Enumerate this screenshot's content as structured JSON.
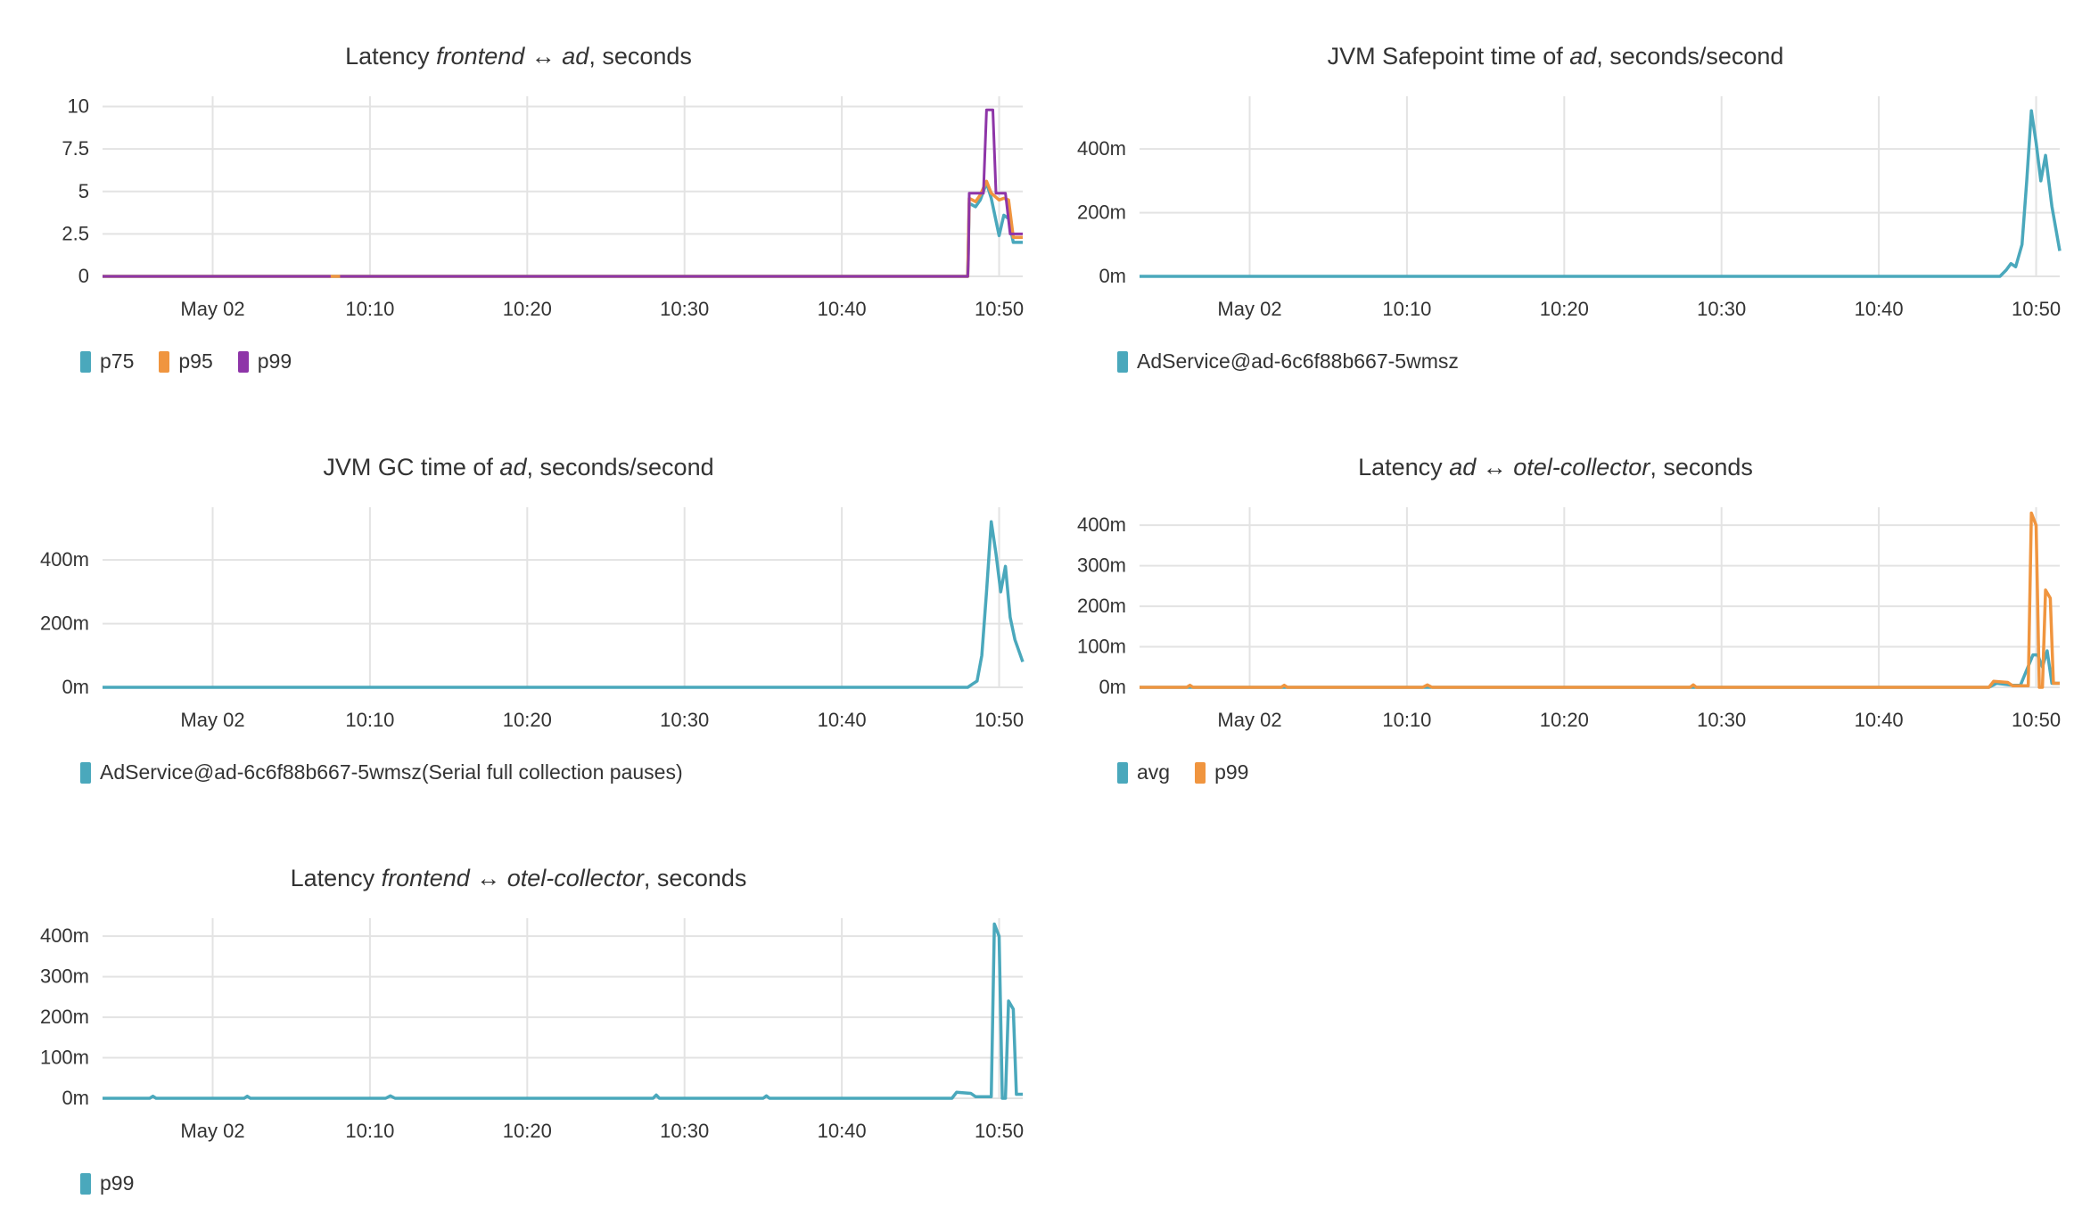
{
  "chart_data": [
    {
      "type": "line",
      "title_parts": [
        "Latency ",
        "frontend",
        " ↔ ",
        "ad",
        ", seconds"
      ],
      "title": "Latency frontend ↔ ad, seconds",
      "x_ticks": [
        "May 02",
        "10:10",
        "10:20",
        "10:30",
        "10:40",
        "10:50"
      ],
      "y_ticks": [
        "0",
        "2.5",
        "5",
        "7.5",
        "10"
      ],
      "ylim": [
        0,
        10.5
      ],
      "series": [
        {
          "name": "p75",
          "color": "#4aa8bc",
          "x": [
            "09:53",
            "10:48",
            "10:48.1",
            "10:48.5",
            "10:48.8",
            "10:49.2",
            "10:49.5",
            "10:50",
            "10:50.3",
            "10:50.6",
            "10:50.9",
            "10:51.2",
            "10:51.5"
          ],
          "y": [
            0,
            0,
            4.3,
            4.1,
            4.5,
            5.5,
            4.6,
            2.4,
            3.6,
            3.4,
            2.0,
            2.0,
            2.0
          ]
        },
        {
          "name": "p95",
          "color": "#f0953f",
          "x": [
            "09:53",
            "10:48",
            "10:48.1",
            "10:48.5",
            "10:48.8",
            "10:49.2",
            "10:49.5",
            "10:50",
            "10:50.3",
            "10:50.6",
            "10:50.9",
            "10:51.2",
            "10:51.5"
          ],
          "y": [
            0,
            0,
            4.6,
            4.4,
            4.8,
            5.6,
            4.9,
            4.5,
            4.6,
            4.5,
            2.3,
            2.3,
            2.3
          ]
        },
        {
          "name": "p99",
          "color": "#8e35a8",
          "x": [
            "09:53",
            "10:07.5",
            "10:07.6",
            "10:08",
            "10:08.1",
            "10:48",
            "10:48.05",
            "10:48.1",
            "10:49",
            "10:49.2",
            "10:49.6",
            "10:49.8",
            "10:50.4",
            "10:50.7",
            "10:51.5"
          ],
          "y": [
            0,
            0,
            null,
            null,
            0,
            0,
            1,
            4.9,
            4.9,
            9.8,
            9.8,
            4.9,
            4.9,
            2.5,
            2.5
          ]
        }
      ]
    },
    {
      "type": "line",
      "title_parts": [
        "JVM Safepoint time of ",
        "ad",
        ", seconds/second"
      ],
      "title": "JVM Safepoint time of ad, seconds/second",
      "x_ticks": [
        "May 02",
        "10:10",
        "10:20",
        "10:30",
        "10:40",
        "10:50"
      ],
      "y_ticks": [
        "0m",
        "200m",
        "400m"
      ],
      "ylim": [
        0,
        0.56
      ],
      "series": [
        {
          "name": "AdService@ad-6c6f88b667-5wmsz",
          "color": "#4aa8bc",
          "x": [
            "09:53",
            "10:47.7",
            "10:48.1",
            "10:48.4",
            "10:48.7",
            "10:49.1",
            "10:49.4",
            "10:49.7",
            "10:50",
            "10:50.3",
            "10:50.6",
            "10:51",
            "10:51.5"
          ],
          "y": [
            0,
            0,
            0.02,
            0.04,
            0.03,
            0.1,
            0.3,
            0.52,
            0.42,
            0.3,
            0.38,
            0.22,
            0.08
          ]
        }
      ]
    },
    {
      "type": "line",
      "title_parts": [
        "JVM GC time of ",
        "ad",
        ", seconds/second"
      ],
      "title": "JVM GC time of ad, seconds/second",
      "x_ticks": [
        "May 02",
        "10:10",
        "10:20",
        "10:30",
        "10:40",
        "10:50"
      ],
      "y_ticks": [
        "0m",
        "200m",
        "400m"
      ],
      "ylim": [
        0,
        0.56
      ],
      "series": [
        {
          "name": "AdService@ad-6c6f88b667-5wmsz(Serial full collection pauses)",
          "color": "#4aa8bc",
          "x": [
            "09:53",
            "10:48",
            "10:48.3",
            "10:48.6",
            "10:48.9",
            "10:49.2",
            "10:49.5",
            "10:49.8",
            "10:50.1",
            "10:50.4",
            "10:50.7",
            "10:51",
            "10:51.5"
          ],
          "y": [
            0,
            0,
            0.01,
            0.02,
            0.1,
            0.3,
            0.52,
            0.42,
            0.3,
            0.38,
            0.22,
            0.15,
            0.08
          ]
        }
      ]
    },
    {
      "type": "line",
      "title_parts": [
        "Latency ",
        "ad",
        " ↔ ",
        "otel-collector",
        ", seconds"
      ],
      "title": "Latency ad ↔ otel-collector, seconds",
      "x_ticks": [
        "May 02",
        "10:10",
        "10:20",
        "10:30",
        "10:40",
        "10:50"
      ],
      "y_ticks": [
        "0m",
        "100m",
        "200m",
        "300m",
        "400m"
      ],
      "ylim": [
        0,
        0.44
      ],
      "series": [
        {
          "name": "avg",
          "color": "#4aa8bc",
          "x": [
            "09:53",
            "10:47",
            "10:47.5",
            "10:48.5",
            "10:49",
            "10:49.8",
            "10:50.1",
            "10:50.4",
            "10:50.7",
            "10:51",
            "10:51.5"
          ],
          "y": [
            0,
            0,
            0.01,
            0.005,
            0.005,
            0.08,
            0.08,
            0.05,
            0.09,
            0.01,
            0.01
          ]
        },
        {
          "name": "p99",
          "color": "#f0953f",
          "x": [
            "09:53",
            "09:56",
            "09:56.2",
            "09:56.4",
            "10:02",
            "10:02.2",
            "10:02.4",
            "10:11",
            "10:11.3",
            "10:11.6",
            "10:28",
            "10:28.2",
            "10:28.4",
            "10:47",
            "10:47.3",
            "10:48.2",
            "10:48.5",
            "10:49.5",
            "10:49.7",
            "10:50",
            "10:50.2",
            "10:50.4",
            "10:50.6",
            "10:50.9",
            "10:51.1",
            "10:51.5"
          ],
          "y": [
            0,
            0,
            0.005,
            0,
            0,
            0.005,
            0,
            0,
            0.006,
            0,
            0,
            0.006,
            0,
            0,
            0.015,
            0.012,
            0.004,
            0.004,
            0.43,
            0.4,
            0.0,
            0.0,
            0.24,
            0.22,
            0.01,
            0.01
          ]
        }
      ]
    },
    {
      "type": "line",
      "title_parts": [
        "Latency ",
        "frontend",
        " ↔ ",
        "otel-collector",
        ", seconds"
      ],
      "title": "Latency frontend ↔ otel-collector, seconds",
      "x_ticks": [
        "May 02",
        "10:10",
        "10:20",
        "10:30",
        "10:40",
        "10:50"
      ],
      "y_ticks": [
        "0m",
        "100m",
        "200m",
        "300m",
        "400m"
      ],
      "ylim": [
        0,
        0.44
      ],
      "series": [
        {
          "name": "p99",
          "color": "#4aa8bc",
          "x": [
            "09:53",
            "09:56",
            "09:56.2",
            "09:56.4",
            "10:02",
            "10:02.2",
            "10:02.4",
            "10:11",
            "10:11.3",
            "10:11.6",
            "10:28",
            "10:28.2",
            "10:28.4",
            "10:35",
            "10:35.2",
            "10:35.4",
            "10:47",
            "10:47.3",
            "10:48.2",
            "10:48.5",
            "10:49.5",
            "10:49.7",
            "10:50",
            "10:50.2",
            "10:50.4",
            "10:50.6",
            "10:50.9",
            "10:51.1",
            "10:51.5"
          ],
          "y": [
            0,
            0,
            0.005,
            0,
            0,
            0.005,
            0,
            0,
            0.006,
            0,
            0,
            0.008,
            0,
            0,
            0.006,
            0,
            0,
            0.015,
            0.012,
            0.004,
            0.004,
            0.43,
            0.4,
            0.0,
            0.0,
            0.24,
            0.22,
            0.01,
            0.01
          ]
        }
      ]
    }
  ]
}
